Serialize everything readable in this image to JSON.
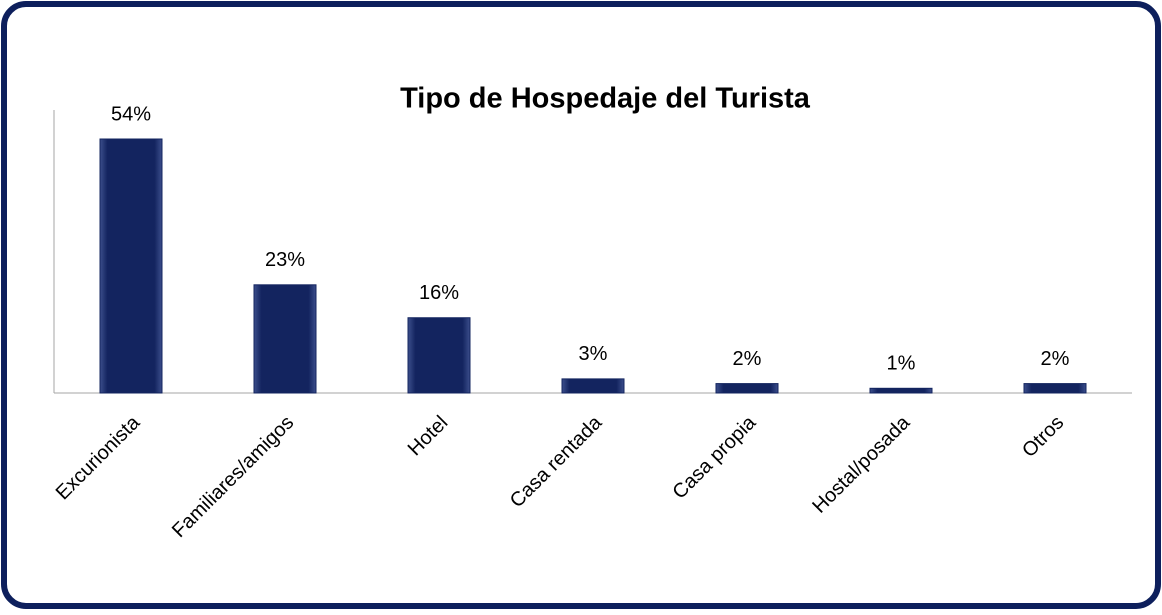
{
  "chart_data": {
    "type": "bar",
    "title": "Tipo de Hospedaje del Turista",
    "categories": [
      "Excurionista",
      "Familiares/amigos",
      "Hotel",
      "Casa rentada",
      "Casa propia",
      "Hostal/posada",
      "Otros"
    ],
    "values": [
      54,
      23,
      16,
      3,
      2,
      1,
      2
    ],
    "value_labels": [
      "54%",
      "23%",
      "16%",
      "3%",
      "2%",
      "1%",
      "2%"
    ],
    "color": "#13245f"
  }
}
